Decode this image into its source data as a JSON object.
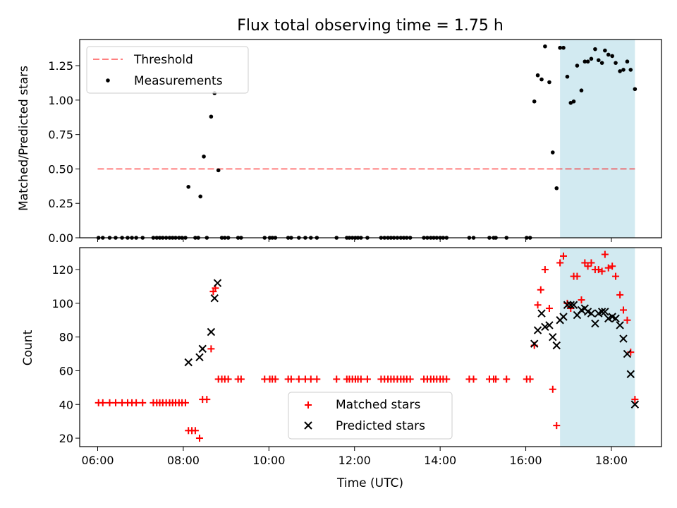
{
  "chart_data": [
    {
      "type": "scatter",
      "title": "Flux total observing time = 1.75 h",
      "ylabel": "Matched/Predicted stars",
      "xlim": [
        5.58,
        19.17
      ],
      "ylim": [
        0.0,
        1.44
      ],
      "yticks": [
        0.0,
        0.25,
        0.5,
        0.75,
        1.0,
        1.25
      ],
      "ytick_labels": [
        "0.00",
        "0.25",
        "0.50",
        "0.75",
        "1.00",
        "1.25"
      ],
      "xticks": [
        6,
        8,
        10,
        12,
        14,
        16,
        18
      ],
      "legend_position": "upper-left",
      "grid": false,
      "highlight_span": {
        "x_start": 16.8,
        "x_end": 18.55,
        "color": "#add8e6"
      },
      "threshold": {
        "name": "Threshold",
        "y": 0.5,
        "x_start": 6.0,
        "x_end": 18.55,
        "color": "#ff0000",
        "style": "dashed"
      },
      "series": [
        {
          "name": "Measurements",
          "color": "#000000",
          "marker": "dot",
          "points": [
            [
              6.02,
              0
            ],
            [
              6.12,
              0
            ],
            [
              6.28,
              0
            ],
            [
              6.42,
              0
            ],
            [
              6.57,
              0
            ],
            [
              6.7,
              0
            ],
            [
              6.8,
              0
            ],
            [
              6.9,
              0
            ],
            [
              7.05,
              0
            ],
            [
              7.3,
              0
            ],
            [
              7.38,
              0
            ],
            [
              7.45,
              0
            ],
            [
              7.52,
              0
            ],
            [
              7.6,
              0
            ],
            [
              7.68,
              0
            ],
            [
              7.75,
              0
            ],
            [
              7.82,
              0
            ],
            [
              7.9,
              0
            ],
            [
              7.97,
              0
            ],
            [
              8.05,
              0
            ],
            [
              8.12,
              0.37
            ],
            [
              8.28,
              0
            ],
            [
              8.35,
              0
            ],
            [
              8.4,
              0.3
            ],
            [
              8.48,
              0.59
            ],
            [
              8.55,
              0
            ],
            [
              8.65,
              0.88
            ],
            [
              8.73,
              1.05
            ],
            [
              8.82,
              0.49
            ],
            [
              8.9,
              0
            ],
            [
              8.97,
              0
            ],
            [
              9.05,
              0
            ],
            [
              9.28,
              0
            ],
            [
              9.35,
              0
            ],
            [
              9.9,
              0
            ],
            [
              10.02,
              0
            ],
            [
              10.08,
              0
            ],
            [
              10.15,
              0
            ],
            [
              10.45,
              0
            ],
            [
              10.52,
              0
            ],
            [
              10.7,
              0
            ],
            [
              10.85,
              0
            ],
            [
              10.98,
              0
            ],
            [
              11.12,
              0
            ],
            [
              11.58,
              0
            ],
            [
              11.82,
              0
            ],
            [
              11.88,
              0
            ],
            [
              11.95,
              0
            ],
            [
              12.02,
              0
            ],
            [
              12.08,
              0
            ],
            [
              12.15,
              0
            ],
            [
              12.3,
              0
            ],
            [
              12.62,
              0
            ],
            [
              12.7,
              0
            ],
            [
              12.78,
              0
            ],
            [
              12.85,
              0
            ],
            [
              12.92,
              0
            ],
            [
              13.0,
              0
            ],
            [
              13.08,
              0
            ],
            [
              13.15,
              0
            ],
            [
              13.22,
              0
            ],
            [
              13.3,
              0
            ],
            [
              13.62,
              0
            ],
            [
              13.7,
              0
            ],
            [
              13.78,
              0
            ],
            [
              13.85,
              0
            ],
            [
              13.92,
              0
            ],
            [
              14.0,
              0
            ],
            [
              14.07,
              0
            ],
            [
              14.15,
              0
            ],
            [
              14.68,
              0
            ],
            [
              14.78,
              0
            ],
            [
              15.15,
              0
            ],
            [
              15.25,
              0
            ],
            [
              15.3,
              0
            ],
            [
              15.55,
              0
            ],
            [
              16.02,
              0
            ],
            [
              16.1,
              0
            ],
            [
              16.2,
              0.99
            ],
            [
              16.28,
              1.18
            ],
            [
              16.37,
              1.15
            ],
            [
              16.45,
              1.39
            ],
            [
              16.55,
              1.13
            ],
            [
              16.63,
              0.62
            ],
            [
              16.72,
              0.36
            ],
            [
              16.8,
              1.38
            ],
            [
              16.88,
              1.38
            ],
            [
              16.97,
              1.17
            ],
            [
              17.05,
              0.98
            ],
            [
              17.12,
              0.99
            ],
            [
              17.2,
              1.25
            ],
            [
              17.3,
              1.07
            ],
            [
              17.38,
              1.28
            ],
            [
              17.45,
              1.28
            ],
            [
              17.53,
              1.3
            ],
            [
              17.62,
              1.37
            ],
            [
              17.7,
              1.29
            ],
            [
              17.78,
              1.27
            ],
            [
              17.85,
              1.36
            ],
            [
              17.93,
              1.33
            ],
            [
              18.02,
              1.32
            ],
            [
              18.1,
              1.27
            ],
            [
              18.2,
              1.21
            ],
            [
              18.28,
              1.22
            ],
            [
              18.37,
              1.28
            ],
            [
              18.45,
              1.22
            ],
            [
              18.55,
              1.08
            ]
          ]
        }
      ]
    },
    {
      "type": "scatter",
      "xlabel": "Time (UTC)",
      "ylabel": "Count",
      "xlim": [
        5.58,
        19.17
      ],
      "ylim": [
        15,
        133
      ],
      "yticks": [
        20,
        40,
        60,
        80,
        100,
        120
      ],
      "ytick_labels": [
        "20",
        "40",
        "60",
        "80",
        "100",
        "120"
      ],
      "xticks": [
        6,
        8,
        10,
        12,
        14,
        16,
        18
      ],
      "xtick_labels": [
        "06:00",
        "08:00",
        "10:00",
        "12:00",
        "14:00",
        "16:00",
        "18:00"
      ],
      "legend_position": "lower-center",
      "grid": false,
      "highlight_span": {
        "x_start": 16.8,
        "x_end": 18.55,
        "color": "#add8e6"
      },
      "series": [
        {
          "name": "Matched stars",
          "color": "#ff0000",
          "marker": "plus",
          "points": [
            [
              6.02,
              41
            ],
            [
              6.12,
              41
            ],
            [
              6.28,
              41
            ],
            [
              6.42,
              41
            ],
            [
              6.57,
              41
            ],
            [
              6.7,
              41
            ],
            [
              6.8,
              41
            ],
            [
              6.9,
              41
            ],
            [
              7.05,
              41
            ],
            [
              7.3,
              41
            ],
            [
              7.38,
              41
            ],
            [
              7.45,
              41
            ],
            [
              7.52,
              41
            ],
            [
              7.6,
              41
            ],
            [
              7.68,
              41
            ],
            [
              7.75,
              41
            ],
            [
              7.82,
              41
            ],
            [
              7.9,
              41
            ],
            [
              7.97,
              41
            ],
            [
              8.05,
              41
            ],
            [
              8.12,
              24.5
            ],
            [
              8.2,
              24.5
            ],
            [
              8.28,
              24.5
            ],
            [
              8.38,
              20
            ],
            [
              8.45,
              43
            ],
            [
              8.55,
              43
            ],
            [
              8.65,
              73
            ],
            [
              8.7,
              107
            ],
            [
              8.75,
              109
            ],
            [
              8.82,
              55
            ],
            [
              8.9,
              55
            ],
            [
              8.97,
              55
            ],
            [
              9.05,
              55
            ],
            [
              9.28,
              55
            ],
            [
              9.35,
              55
            ],
            [
              9.9,
              55
            ],
            [
              10.02,
              55
            ],
            [
              10.08,
              55
            ],
            [
              10.15,
              55
            ],
            [
              10.45,
              55
            ],
            [
              10.52,
              55
            ],
            [
              10.7,
              55
            ],
            [
              10.85,
              55
            ],
            [
              10.98,
              55
            ],
            [
              11.12,
              55
            ],
            [
              11.58,
              55
            ],
            [
              11.82,
              55
            ],
            [
              11.88,
              55
            ],
            [
              11.95,
              55
            ],
            [
              12.02,
              55
            ],
            [
              12.08,
              55
            ],
            [
              12.15,
              55
            ],
            [
              12.3,
              55
            ],
            [
              12.62,
              55
            ],
            [
              12.7,
              55
            ],
            [
              12.78,
              55
            ],
            [
              12.85,
              55
            ],
            [
              12.92,
              55
            ],
            [
              13.0,
              55
            ],
            [
              13.08,
              55
            ],
            [
              13.15,
              55
            ],
            [
              13.22,
              55
            ],
            [
              13.3,
              55
            ],
            [
              13.62,
              55
            ],
            [
              13.7,
              55
            ],
            [
              13.78,
              55
            ],
            [
              13.85,
              55
            ],
            [
              13.92,
              55
            ],
            [
              14.0,
              55
            ],
            [
              14.07,
              55
            ],
            [
              14.15,
              55
            ],
            [
              14.68,
              55
            ],
            [
              14.78,
              55
            ],
            [
              15.15,
              55
            ],
            [
              15.25,
              55
            ],
            [
              15.3,
              55
            ],
            [
              15.55,
              55
            ],
            [
              16.02,
              55
            ],
            [
              16.1,
              55
            ],
            [
              16.2,
              75
            ],
            [
              16.28,
              99
            ],
            [
              16.35,
              108
            ],
            [
              16.45,
              120
            ],
            [
              16.55,
              97
            ],
            [
              16.63,
              49
            ],
            [
              16.72,
              27.5
            ],
            [
              16.8,
              124
            ],
            [
              16.88,
              128
            ],
            [
              16.97,
              100
            ],
            [
              17.05,
              97
            ],
            [
              17.12,
              116
            ],
            [
              17.2,
              116
            ],
            [
              17.3,
              102
            ],
            [
              17.38,
              124
            ],
            [
              17.45,
              122
            ],
            [
              17.53,
              124
            ],
            [
              17.62,
              120
            ],
            [
              17.7,
              120
            ],
            [
              17.78,
              119
            ],
            [
              17.85,
              129
            ],
            [
              17.93,
              121
            ],
            [
              18.02,
              122
            ],
            [
              18.1,
              116
            ],
            [
              18.2,
              105
            ],
            [
              18.28,
              96
            ],
            [
              18.37,
              90
            ],
            [
              18.45,
              71
            ],
            [
              18.55,
              43
            ]
          ]
        },
        {
          "name": "Predicted stars",
          "color": "#000000",
          "marker": "x",
          "points": [
            [
              8.12,
              65
            ],
            [
              8.38,
              68
            ],
            [
              8.45,
              73
            ],
            [
              8.65,
              83
            ],
            [
              8.73,
              103
            ],
            [
              8.8,
              112
            ],
            [
              16.2,
              76
            ],
            [
              16.28,
              84
            ],
            [
              16.37,
              94
            ],
            [
              16.45,
              86
            ],
            [
              16.55,
              87
            ],
            [
              16.63,
              80
            ],
            [
              16.72,
              75
            ],
            [
              16.8,
              90
            ],
            [
              16.88,
              92
            ],
            [
              16.97,
              99
            ],
            [
              17.05,
              99
            ],
            [
              17.12,
              99
            ],
            [
              17.2,
              93
            ],
            [
              17.3,
              96
            ],
            [
              17.38,
              97
            ],
            [
              17.45,
              95
            ],
            [
              17.53,
              94
            ],
            [
              17.62,
              88
            ],
            [
              17.7,
              94
            ],
            [
              17.78,
              95
            ],
            [
              17.85,
              95
            ],
            [
              17.93,
              91
            ],
            [
              18.02,
              92
            ],
            [
              18.1,
              91
            ],
            [
              18.2,
              87
            ],
            [
              18.28,
              79
            ],
            [
              18.37,
              70
            ],
            [
              18.45,
              58
            ],
            [
              18.55,
              40
            ]
          ]
        }
      ]
    }
  ]
}
